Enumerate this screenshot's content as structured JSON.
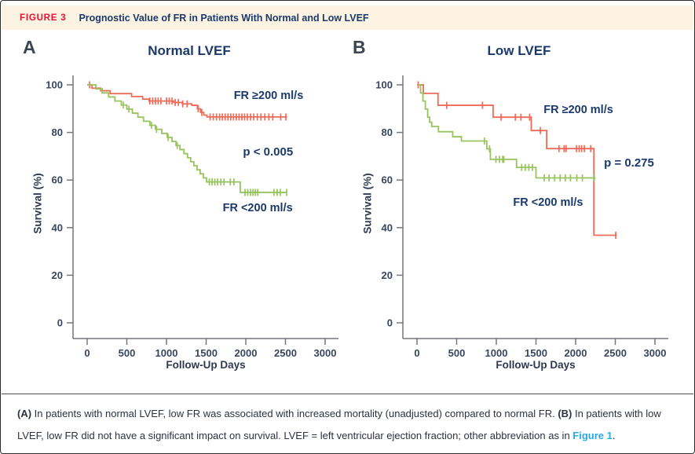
{
  "figure_header": {
    "label": "FIGURE 3",
    "title": "Prognostic Value of FR in Patients With Normal and Low LVEF"
  },
  "caption": {
    "a_bold": "(A)",
    "a_text": " In patients with normal LVEF, low FR was associated with increased mortality (unadjusted) compared to normal FR. ",
    "b_bold": "(B)",
    "b_text": " In patients with low LVEF, low FR did not have a significant impact on survival. LVEF = left ventricular ejection fraction; other abbreviation as in ",
    "link": "Figure 1",
    "end": "."
  },
  "colors": {
    "red": "#ee6b58",
    "green": "#97c45c",
    "axis": "#73777e",
    "navy": "#1b3a6b",
    "figure_label_red": "#e8112d",
    "header_bg": "#fcf3e2",
    "link_blue": "#2aa9e1"
  },
  "chart_data": [
    {
      "type": "km_survival",
      "panel_label": "A",
      "title": "Normal LVEF",
      "xlabel": "Follow-Up Days",
      "ylabel": "Survival (%)",
      "xlim": [
        0,
        3000
      ],
      "ylim": [
        0,
        100
      ],
      "xticks": [
        0,
        500,
        1000,
        1500,
        2000,
        2500,
        3000
      ],
      "yticks": [
        0,
        20,
        40,
        60,
        80,
        100
      ],
      "p_value": {
        "text": "p < 0.005",
        "day": 2280,
        "pct": 71.9
      },
      "series": [
        {
          "name": "FR ≥200 ml/s",
          "color_key": "red",
          "label": {
            "day": 2287,
            "pct": 95.7
          },
          "steps": [
            [
              0,
              100
            ],
            [
              60,
              98.6
            ],
            [
              170,
              97.5
            ],
            [
              290,
              96.3
            ],
            [
              560,
              95.1
            ],
            [
              700,
              94.0
            ],
            [
              780,
              93.2
            ],
            [
              1090,
              92.6
            ],
            [
              1200,
              92.0
            ],
            [
              1320,
              91.4
            ],
            [
              1390,
              89.9
            ],
            [
              1430,
              88.4
            ],
            [
              1470,
              87.3
            ],
            [
              1510,
              86.5
            ],
            [
              2520,
              86.5
            ]
          ],
          "censors": [
            [
              30,
              100
            ],
            [
              790,
              93.2
            ],
            [
              825,
              93.2
            ],
            [
              860,
              93.2
            ],
            [
              895,
              93.2
            ],
            [
              930,
              93.2
            ],
            [
              1000,
              93.2
            ],
            [
              1035,
              93.2
            ],
            [
              1070,
              93.2
            ],
            [
              1110,
              92.6
            ],
            [
              1150,
              92.6
            ],
            [
              1205,
              92.0
            ],
            [
              1260,
              92.0
            ],
            [
              1400,
              89.9
            ],
            [
              1445,
              88.4
            ],
            [
              1550,
              86.5
            ],
            [
              1590,
              86.5
            ],
            [
              1630,
              86.5
            ],
            [
              1670,
              86.5
            ],
            [
              1705,
              86.5
            ],
            [
              1740,
              86.5
            ],
            [
              1775,
              86.5
            ],
            [
              1810,
              86.5
            ],
            [
              1845,
              86.5
            ],
            [
              1880,
              86.5
            ],
            [
              1915,
              86.5
            ],
            [
              1950,
              86.5
            ],
            [
              1985,
              86.5
            ],
            [
              2020,
              86.5
            ],
            [
              2060,
              86.5
            ],
            [
              2100,
              86.5
            ],
            [
              2145,
              86.5
            ],
            [
              2190,
              86.5
            ],
            [
              2240,
              86.5
            ],
            [
              2290,
              86.5
            ],
            [
              2340,
              86.5
            ],
            [
              2440,
              86.5
            ],
            [
              2505,
              86.5
            ]
          ]
        },
        {
          "name": "FR <200 ml/s",
          "color_key": "green",
          "label": {
            "day": 2150,
            "pct": 48.5
          },
          "steps": [
            [
              0,
              100
            ],
            [
              110,
              98.3
            ],
            [
              190,
              96.6
            ],
            [
              270,
              94.9
            ],
            [
              350,
              93.2
            ],
            [
              430,
              91.5
            ],
            [
              500,
              89.8
            ],
            [
              570,
              88.1
            ],
            [
              640,
              86.4
            ],
            [
              710,
              84.7
            ],
            [
              790,
              83.0
            ],
            [
              860,
              81.3
            ],
            [
              940,
              79.6
            ],
            [
              1010,
              77.9
            ],
            [
              1070,
              76.2
            ],
            [
              1120,
              74.5
            ],
            [
              1170,
              72.8
            ],
            [
              1220,
              71.1
            ],
            [
              1265,
              69.4
            ],
            [
              1305,
              67.7
            ],
            [
              1345,
              66.0
            ],
            [
              1385,
              64.3
            ],
            [
              1425,
              62.6
            ],
            [
              1465,
              60.9
            ],
            [
              1505,
              59.2
            ],
            [
              1930,
              54.8
            ],
            [
              2520,
              54.8
            ]
          ],
          "censors": [
            [
              455,
              91.5
            ],
            [
              525,
              89.8
            ],
            [
              810,
              83.0
            ],
            [
              875,
              81.3
            ],
            [
              1020,
              77.9
            ],
            [
              1135,
              74.5
            ],
            [
              1540,
              59.2
            ],
            [
              1575,
              59.2
            ],
            [
              1610,
              59.2
            ],
            [
              1645,
              59.2
            ],
            [
              1685,
              59.2
            ],
            [
              1725,
              59.2
            ],
            [
              1805,
              59.2
            ],
            [
              1850,
              59.2
            ],
            [
              1990,
              54.8
            ],
            [
              2025,
              54.8
            ],
            [
              2060,
              54.8
            ],
            [
              2090,
              54.8
            ],
            [
              2120,
              54.8
            ],
            [
              2150,
              54.8
            ],
            [
              2355,
              54.8
            ],
            [
              2395,
              54.8
            ],
            [
              2435,
              54.8
            ],
            [
              2515,
              54.8
            ]
          ]
        }
      ]
    },
    {
      "type": "km_survival",
      "panel_label": "B",
      "title": "Low LVEF",
      "xlabel": "Follow-Up Days",
      "ylabel": "Survival (%)",
      "xlim": [
        0,
        3000
      ],
      "ylim": [
        0,
        100
      ],
      "xticks": [
        0,
        500,
        1000,
        1500,
        2000,
        2500,
        3000
      ],
      "yticks": [
        0,
        20,
        40,
        60,
        80,
        100
      ],
      "p_value": {
        "text": "p = 0.275",
        "day": 2673,
        "pct": 67.3
      },
      "series": [
        {
          "name": "FR ≥200 ml/s",
          "color_key": "red",
          "label": {
            "day": 2035,
            "pct": 89.8
          },
          "steps": [
            [
              0,
              100
            ],
            [
              80,
              96.4
            ],
            [
              265,
              91.4
            ],
            [
              960,
              86.4
            ],
            [
              1440,
              80.8
            ],
            [
              1635,
              73.2
            ],
            [
              2230,
              36.8
            ],
            [
              2520,
              36.8
            ]
          ],
          "censors": [
            [
              15,
              100
            ],
            [
              375,
              91.4
            ],
            [
              825,
              91.4
            ],
            [
              1060,
              86.4
            ],
            [
              1240,
              86.4
            ],
            [
              1310,
              86.4
            ],
            [
              1420,
              86.4
            ],
            [
              1555,
              80.8
            ],
            [
              1790,
              73.2
            ],
            [
              1855,
              73.2
            ],
            [
              1880,
              73.2
            ],
            [
              2010,
              73.2
            ],
            [
              2045,
              73.2
            ],
            [
              2075,
              73.2
            ],
            [
              2110,
              73.2
            ],
            [
              2190,
              73.2
            ],
            [
              2505,
              36.8
            ]
          ]
        },
        {
          "name": "FR <200 ml/s",
          "color_key": "green",
          "label": {
            "day": 1653,
            "pct": 50.8
          },
          "steps": [
            [
              0,
              100
            ],
            [
              45,
              96.6
            ],
            [
              75,
              93.2
            ],
            [
              105,
              89.8
            ],
            [
              135,
              86.4
            ],
            [
              160,
              84.3
            ],
            [
              185,
              82.5
            ],
            [
              270,
              80.3
            ],
            [
              450,
              78.2
            ],
            [
              560,
              76.4
            ],
            [
              880,
              73.1
            ],
            [
              925,
              68.7
            ],
            [
              1255,
              65.3
            ],
            [
              1500,
              60.9
            ],
            [
              2250,
              60.9
            ]
          ],
          "censors": [
            [
              850,
              76.4
            ],
            [
              915,
              73.1
            ],
            [
              995,
              68.7
            ],
            [
              1040,
              68.7
            ],
            [
              1080,
              68.7
            ],
            [
              1095,
              68.7
            ],
            [
              1320,
              65.3
            ],
            [
              1365,
              65.3
            ],
            [
              1410,
              65.3
            ],
            [
              1455,
              65.3
            ],
            [
              1605,
              60.9
            ],
            [
              1665,
              60.9
            ],
            [
              1735,
              60.9
            ],
            [
              1805,
              60.9
            ],
            [
              1870,
              60.9
            ],
            [
              1935,
              60.9
            ],
            [
              2015,
              60.9
            ],
            [
              2085,
              60.9
            ],
            [
              2235,
              60.9
            ]
          ]
        }
      ]
    }
  ]
}
